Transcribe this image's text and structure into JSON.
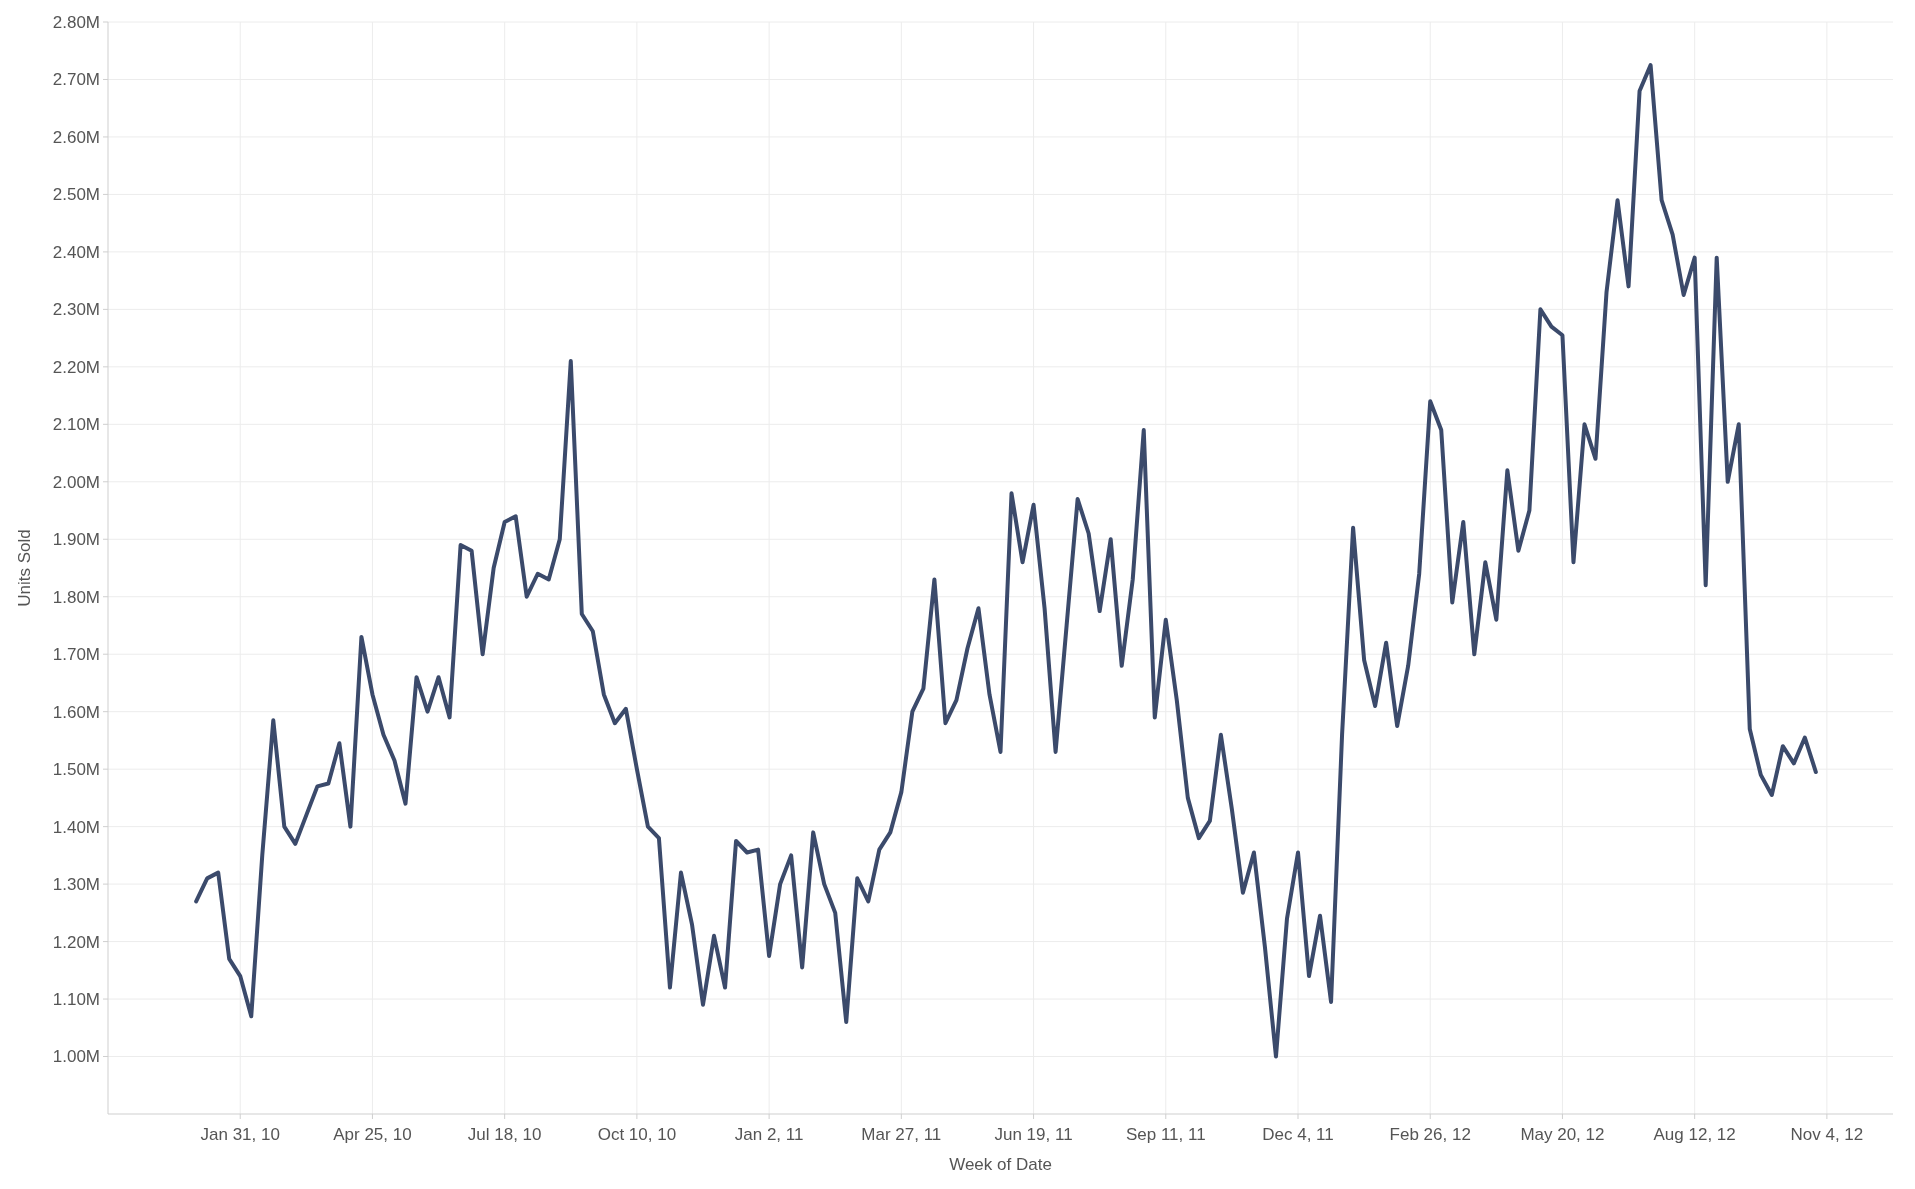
{
  "chart_data": {
    "type": "line",
    "xlabel": "Week of Date",
    "ylabel": "Units Sold",
    "x": [
      "2010-01-03",
      "2010-01-10",
      "2010-01-17",
      "2010-01-24",
      "2010-01-31",
      "2010-02-07",
      "2010-02-14",
      "2010-02-21",
      "2010-02-28",
      "2010-03-07",
      "2010-03-14",
      "2010-03-21",
      "2010-03-28",
      "2010-04-04",
      "2010-04-11",
      "2010-04-18",
      "2010-04-25",
      "2010-05-02",
      "2010-05-09",
      "2010-05-16",
      "2010-05-23",
      "2010-05-30",
      "2010-06-06",
      "2010-06-13",
      "2010-06-20",
      "2010-06-27",
      "2010-07-04",
      "2010-07-11",
      "2010-07-18",
      "2010-07-25",
      "2010-08-01",
      "2010-08-08",
      "2010-08-15",
      "2010-08-22",
      "2010-08-29",
      "2010-09-05",
      "2010-09-12",
      "2010-09-19",
      "2010-09-26",
      "2010-10-03",
      "2010-10-10",
      "2010-10-17",
      "2010-10-24",
      "2010-10-31",
      "2010-11-07",
      "2010-11-14",
      "2010-11-21",
      "2010-11-28",
      "2010-12-05",
      "2010-12-12",
      "2010-12-19",
      "2010-12-26",
      "2011-01-02",
      "2011-01-09",
      "2011-01-16",
      "2011-01-23",
      "2011-01-30",
      "2011-02-06",
      "2011-02-13",
      "2011-02-20",
      "2011-02-27",
      "2011-03-06",
      "2011-03-13",
      "2011-03-20",
      "2011-03-27",
      "2011-04-03",
      "2011-04-10",
      "2011-04-17",
      "2011-04-24",
      "2011-05-01",
      "2011-05-08",
      "2011-05-15",
      "2011-05-22",
      "2011-05-29",
      "2011-06-05",
      "2011-06-12",
      "2011-06-19",
      "2011-06-26",
      "2011-07-03",
      "2011-07-10",
      "2011-07-17",
      "2011-07-24",
      "2011-07-31",
      "2011-08-07",
      "2011-08-14",
      "2011-08-21",
      "2011-08-28",
      "2011-09-04",
      "2011-09-11",
      "2011-09-18",
      "2011-09-25",
      "2011-10-02",
      "2011-10-09",
      "2011-10-16",
      "2011-10-23",
      "2011-10-30",
      "2011-11-06",
      "2011-11-13",
      "2011-11-20",
      "2011-11-27",
      "2011-12-04",
      "2011-12-11",
      "2011-12-18",
      "2011-12-25",
      "2012-01-01",
      "2012-01-08",
      "2012-01-15",
      "2012-01-22",
      "2012-01-29",
      "2012-02-05",
      "2012-02-12",
      "2012-02-19",
      "2012-02-26",
      "2012-03-04",
      "2012-03-11",
      "2012-03-18",
      "2012-03-25",
      "2012-04-01",
      "2012-04-08",
      "2012-04-15",
      "2012-04-22",
      "2012-04-29",
      "2012-05-06",
      "2012-05-13",
      "2012-05-20",
      "2012-05-27",
      "2012-06-03",
      "2012-06-10",
      "2012-06-17",
      "2012-06-24",
      "2012-07-01",
      "2012-07-08",
      "2012-07-15",
      "2012-07-22",
      "2012-07-29",
      "2012-08-05",
      "2012-08-12",
      "2012-08-19",
      "2012-08-26",
      "2012-09-02",
      "2012-09-09",
      "2012-09-16",
      "2012-09-23",
      "2012-09-30",
      "2012-10-07",
      "2012-10-14",
      "2012-10-21",
      "2012-10-28"
    ],
    "series": [
      {
        "color": "#3b4a6b",
        "values": [
          1.27,
          1.31,
          1.32,
          1.17,
          1.14,
          1.07,
          1.35,
          1.585,
          1.4,
          1.37,
          1.42,
          1.47,
          1.475,
          1.545,
          1.4,
          1.73,
          1.63,
          1.56,
          1.515,
          1.44,
          1.66,
          1.6,
          1.66,
          1.59,
          1.89,
          1.88,
          1.7,
          1.85,
          1.93,
          1.94,
          1.8,
          1.84,
          1.83,
          1.9,
          2.21,
          1.77,
          1.74,
          1.63,
          1.58,
          1.605,
          1.5,
          1.4,
          1.38,
          1.12,
          1.32,
          1.23,
          1.09,
          1.21,
          1.12,
          1.375,
          1.355,
          1.36,
          1.175,
          1.3,
          1.35,
          1.155,
          1.39,
          1.3,
          1.25,
          1.06,
          1.31,
          1.27,
          1.36,
          1.39,
          1.46,
          1.6,
          1.64,
          1.83,
          1.58,
          1.62,
          1.71,
          1.78,
          1.63,
          1.53,
          1.98,
          1.86,
          1.96,
          1.78,
          1.53,
          1.75,
          1.97,
          1.91,
          1.775,
          1.9,
          1.68,
          1.83,
          2.09,
          1.59,
          1.76,
          1.62,
          1.45,
          1.38,
          1.41,
          1.56,
          1.43,
          1.285,
          1.355,
          1.19,
          1.0,
          1.24,
          1.355,
          1.14,
          1.245,
          1.095,
          1.56,
          1.92,
          1.69,
          1.61,
          1.72,
          1.575,
          1.68,
          1.84,
          2.14,
          2.09,
          1.79,
          1.93,
          1.7,
          1.86,
          1.76,
          2.02,
          1.88,
          1.95,
          2.3,
          2.27,
          2.255,
          1.86,
          2.1,
          2.04,
          2.33,
          2.49,
          2.34,
          2.68,
          2.725,
          2.49,
          2.43,
          2.325,
          2.39,
          1.82,
          2.39,
          2.0,
          2.1,
          1.57,
          1.49,
          1.455,
          1.54,
          1.51,
          1.555,
          1.495
        ]
      }
    ],
    "xlim": [
      "2009-11-08",
      "2012-12-16"
    ],
    "xticks": [
      {
        "value": "2010-01-31",
        "label": "Jan 31, 10"
      },
      {
        "value": "2010-04-25",
        "label": "Apr 25, 10"
      },
      {
        "value": "2010-07-18",
        "label": "Jul 18, 10"
      },
      {
        "value": "2010-10-10",
        "label": "Oct 10, 10"
      },
      {
        "value": "2011-01-02",
        "label": "Jan 2, 11"
      },
      {
        "value": "2011-03-27",
        "label": "Mar 27, 11"
      },
      {
        "value": "2011-06-19",
        "label": "Jun 19, 11"
      },
      {
        "value": "2011-09-11",
        "label": "Sep 11, 11"
      },
      {
        "value": "2011-12-04",
        "label": "Dec 4, 11"
      },
      {
        "value": "2012-02-26",
        "label": "Feb 26, 12"
      },
      {
        "value": "2012-05-20",
        "label": "May 20, 12"
      },
      {
        "value": "2012-08-12",
        "label": "Aug 12, 12"
      },
      {
        "value": "2012-11-04",
        "label": "Nov 4, 12"
      }
    ],
    "ylim": [
      0.9,
      2.8
    ],
    "yticks": [
      {
        "value": 1.0,
        "label": "1.00M"
      },
      {
        "value": 1.1,
        "label": "1.10M"
      },
      {
        "value": 1.2,
        "label": "1.20M"
      },
      {
        "value": 1.3,
        "label": "1.30M"
      },
      {
        "value": 1.4,
        "label": "1.40M"
      },
      {
        "value": 1.5,
        "label": "1.50M"
      },
      {
        "value": 1.6,
        "label": "1.60M"
      },
      {
        "value": 1.7,
        "label": "1.70M"
      },
      {
        "value": 1.8,
        "label": "1.80M"
      },
      {
        "value": 1.9,
        "label": "1.90M"
      },
      {
        "value": 2.0,
        "label": "2.00M"
      },
      {
        "value": 2.1,
        "label": "2.10M"
      },
      {
        "value": 2.2,
        "label": "2.20M"
      },
      {
        "value": 2.3,
        "label": "2.30M"
      },
      {
        "value": 2.4,
        "label": "2.40M"
      },
      {
        "value": 2.5,
        "label": "2.50M"
      },
      {
        "value": 2.6,
        "label": "2.60M"
      },
      {
        "value": 2.7,
        "label": "2.70M"
      },
      {
        "value": 2.8,
        "label": "2.80M"
      }
    ],
    "grid": true,
    "marker": "none",
    "line_style": "solid"
  }
}
